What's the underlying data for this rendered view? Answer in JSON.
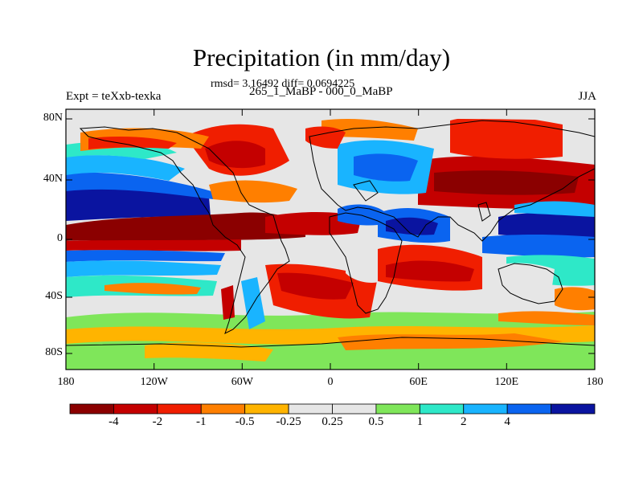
{
  "title": "Precipitation (in mm/day)",
  "stats": "rmsd= 3.16492 diff= 0.0694225",
  "subtitle": "265_1_MaBP - 000_0_MaBP",
  "experiment": "Expt = teXxb-texka",
  "season": "JJA",
  "map": {
    "lat_labels": [
      "80N",
      "40N",
      "0",
      "40S",
      "80S"
    ],
    "lon_labels": [
      "180",
      "120W",
      "60W",
      "0",
      "60E",
      "120E",
      "180"
    ]
  },
  "colorbar": {
    "colors": [
      "#8b0000",
      "#c40000",
      "#f01e00",
      "#ff7f00",
      "#ffb400",
      "#e6e6e6",
      "#e6e6e6",
      "#7fe65a",
      "#2ee8c8",
      "#19b4ff",
      "#0a64f0",
      "#0a14a0"
    ],
    "labels": [
      "-4",
      "-2",
      "-1",
      "-0.5",
      "-0.25",
      "0.25",
      "0.5",
      "1",
      "2",
      "4"
    ]
  }
}
